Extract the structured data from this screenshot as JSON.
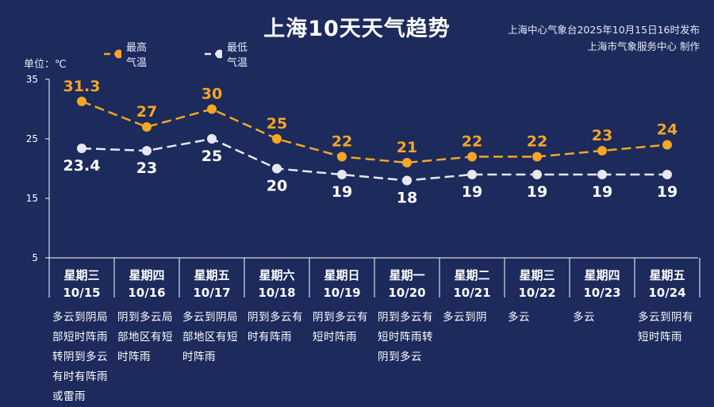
{
  "title": "上海10天天气趋势",
  "source_line1": "上海中心气象台2025年10月15日16时发布",
  "source_line2": "上海市气象服务中心 制作",
  "unit_label": "单位：℃",
  "colors": {
    "background": "#1c2a5c",
    "high": "#f5a623",
    "low": "#e8e8f0",
    "axis": "#ffffff"
  },
  "chart_data": {
    "type": "line",
    "categories": [
      "10/15",
      "10/16",
      "10/17",
      "10/18",
      "10/19",
      "10/20",
      "10/21",
      "10/22",
      "10/23",
      "10/24"
    ],
    "series": [
      {
        "name": "最高气温",
        "values": [
          31.3,
          27,
          30,
          25,
          22,
          21,
          22,
          22,
          23,
          24
        ],
        "labels": [
          "31.3",
          "27",
          "30",
          "25",
          "22",
          "21",
          "22",
          "22",
          "23",
          "24"
        ],
        "line_style": "dashed"
      },
      {
        "name": "最低气温",
        "values": [
          23.4,
          23,
          25,
          20,
          19,
          18,
          19,
          19,
          19,
          19
        ],
        "labels": [
          "23.4",
          "23",
          "25",
          "20",
          "19",
          "18",
          "19",
          "19",
          "19",
          "19"
        ],
        "line_style": "dashed"
      }
    ],
    "ylim": [
      5,
      35
    ],
    "yticks": [
      5,
      15,
      25,
      35
    ],
    "ylabel": "单位：℃",
    "legend_position": "top-left",
    "grid": false
  },
  "days": [
    {
      "weekday": "星期三",
      "date": "10/15",
      "weather": "多云到阴局部短时阵雨转阴到多云有时有阵雨或雷雨"
    },
    {
      "weekday": "星期四",
      "date": "10/16",
      "weather": "阴到多云局部地区有短时阵雨"
    },
    {
      "weekday": "星期五",
      "date": "10/17",
      "weather": "多云到阴局部地区有短时阵雨"
    },
    {
      "weekday": "星期六",
      "date": "10/18",
      "weather": "阴到多云有时有阵雨"
    },
    {
      "weekday": "星期日",
      "date": "10/19",
      "weather": "阴到多云有短时阵雨"
    },
    {
      "weekday": "星期一",
      "date": "10/20",
      "weather": "阴到多云有短时阵雨转阴到多云"
    },
    {
      "weekday": "星期二",
      "date": "10/21",
      "weather": "多云到阴"
    },
    {
      "weekday": "星期三",
      "date": "10/22",
      "weather": "多云"
    },
    {
      "weekday": "星期四",
      "date": "10/23",
      "weather": "多云"
    },
    {
      "weekday": "星期五",
      "date": "10/24",
      "weather": "多云到阴有短时阵雨"
    }
  ]
}
